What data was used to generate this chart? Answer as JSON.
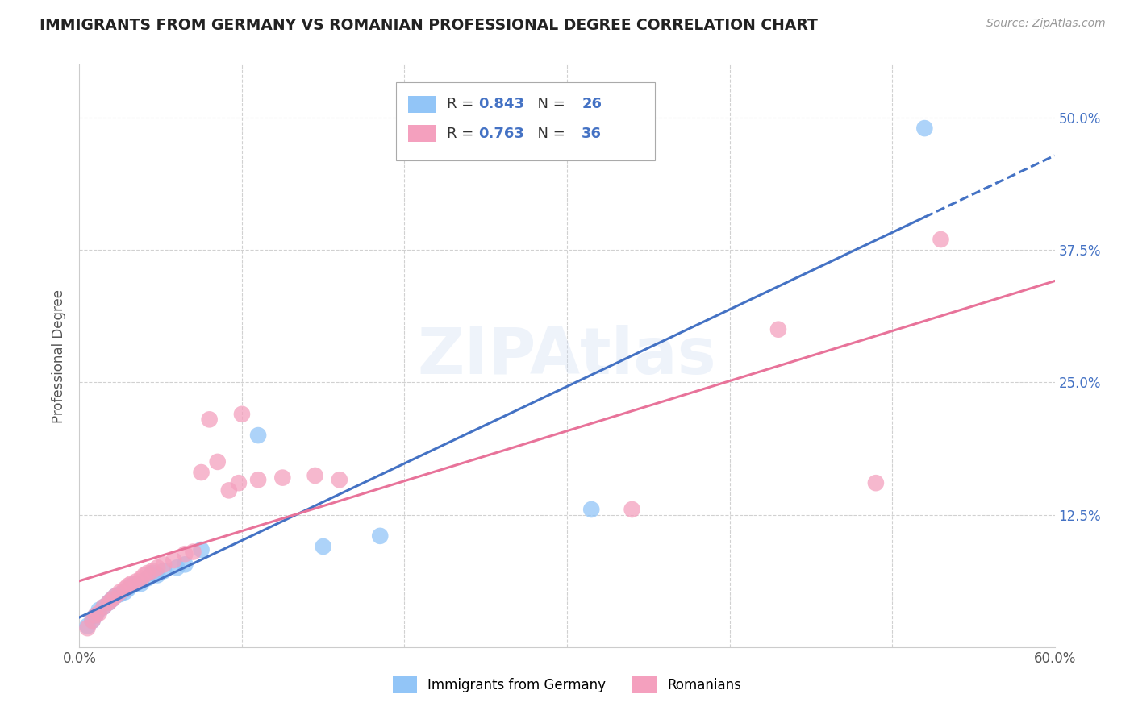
{
  "title": "IMMIGRANTS FROM GERMANY VS ROMANIAN PROFESSIONAL DEGREE CORRELATION CHART",
  "source": "Source: ZipAtlas.com",
  "ylabel": "Professional Degree",
  "xlim": [
    0.0,
    0.6
  ],
  "ylim": [
    0.0,
    0.55
  ],
  "x_ticks": [
    0.0,
    0.1,
    0.2,
    0.3,
    0.4,
    0.5,
    0.6
  ],
  "x_tick_labels": [
    "0.0%",
    "",
    "",
    "",
    "",
    "",
    "60.0%"
  ],
  "y_ticks": [
    0.0,
    0.125,
    0.25,
    0.375,
    0.5
  ],
  "y_tick_labels": [
    "",
    "12.5%",
    "25.0%",
    "37.5%",
    "50.0%"
  ],
  "germany_R": "0.843",
  "germany_N": "26",
  "romania_R": "0.763",
  "romania_N": "36",
  "germany_color": "#92C5F7",
  "romania_color": "#F4A0BE",
  "germany_line_color": "#4472C4",
  "romania_line_color": "#E8739A",
  "germany_scatter": [
    [
      0.005,
      0.02
    ],
    [
      0.008,
      0.025
    ],
    [
      0.01,
      0.03
    ],
    [
      0.012,
      0.035
    ],
    [
      0.015,
      0.038
    ],
    [
      0.018,
      0.042
    ],
    [
      0.02,
      0.045
    ],
    [
      0.022,
      0.048
    ],
    [
      0.025,
      0.05
    ],
    [
      0.028,
      0.052
    ],
    [
      0.03,
      0.055
    ],
    [
      0.032,
      0.058
    ],
    [
      0.035,
      0.06
    ],
    [
      0.038,
      0.06
    ],
    [
      0.042,
      0.065
    ],
    [
      0.045,
      0.07
    ],
    [
      0.048,
      0.068
    ],
    [
      0.052,
      0.072
    ],
    [
      0.06,
      0.075
    ],
    [
      0.065,
      0.078
    ],
    [
      0.075,
      0.092
    ],
    [
      0.11,
      0.2
    ],
    [
      0.15,
      0.095
    ],
    [
      0.185,
      0.105
    ],
    [
      0.315,
      0.13
    ],
    [
      0.52,
      0.49
    ]
  ],
  "romania_scatter": [
    [
      0.005,
      0.018
    ],
    [
      0.008,
      0.025
    ],
    [
      0.01,
      0.03
    ],
    [
      0.012,
      0.032
    ],
    [
      0.015,
      0.038
    ],
    [
      0.018,
      0.042
    ],
    [
      0.02,
      0.045
    ],
    [
      0.022,
      0.048
    ],
    [
      0.025,
      0.052
    ],
    [
      0.028,
      0.055
    ],
    [
      0.03,
      0.058
    ],
    [
      0.032,
      0.06
    ],
    [
      0.035,
      0.062
    ],
    [
      0.038,
      0.065
    ],
    [
      0.04,
      0.068
    ],
    [
      0.042,
      0.07
    ],
    [
      0.045,
      0.072
    ],
    [
      0.048,
      0.075
    ],
    [
      0.052,
      0.078
    ],
    [
      0.058,
      0.082
    ],
    [
      0.065,
      0.088
    ],
    [
      0.07,
      0.09
    ],
    [
      0.075,
      0.165
    ],
    [
      0.085,
      0.175
    ],
    [
      0.092,
      0.148
    ],
    [
      0.098,
      0.155
    ],
    [
      0.11,
      0.158
    ],
    [
      0.125,
      0.16
    ],
    [
      0.145,
      0.162
    ],
    [
      0.16,
      0.158
    ],
    [
      0.08,
      0.215
    ],
    [
      0.1,
      0.22
    ],
    [
      0.34,
      0.13
    ],
    [
      0.49,
      0.155
    ],
    [
      0.43,
      0.3
    ],
    [
      0.53,
      0.385
    ]
  ],
  "watermark": "ZIPAtlas",
  "background_color": "#FFFFFF",
  "grid_color": "#CCCCCC",
  "legend_label_germany": "Immigrants from Germany",
  "legend_label_romania": "Romanians"
}
